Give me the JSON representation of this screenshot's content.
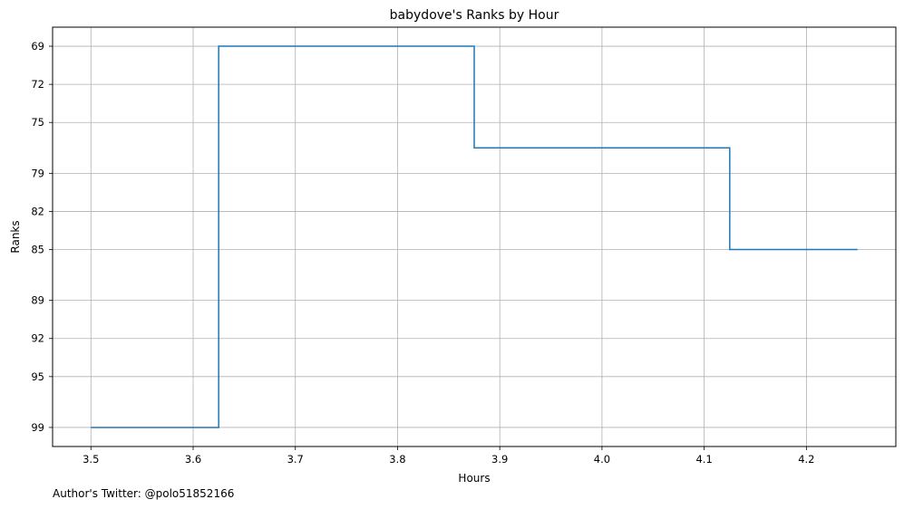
{
  "chart_data": {
    "type": "line",
    "title": "babydove's Ranks by Hour",
    "xlabel": "Hours",
    "ylabel": "Ranks",
    "x_ticks": [
      "3.5",
      "3.6",
      "3.7",
      "3.8",
      "3.9",
      "4.0",
      "4.1",
      "4.2"
    ],
    "y_ticks": [
      "69",
      "72",
      "75",
      "79",
      "82",
      "85",
      "89",
      "92",
      "95",
      "99"
    ],
    "xlim": [
      3.4625,
      4.2875
    ],
    "ylim": [
      100.5,
      67.5
    ],
    "y_inverted": true,
    "grid": true,
    "step": "mid",
    "series": [
      {
        "x": [
          3.5,
          3.625,
          3.625,
          3.875,
          3.875,
          4.125,
          4.125,
          4.25
        ],
        "y": [
          99,
          99,
          69,
          69,
          77,
          77,
          85,
          85
        ],
        "color": "#1f77b4"
      }
    ]
  },
  "footer": "Author's Twitter: @polo51852166"
}
